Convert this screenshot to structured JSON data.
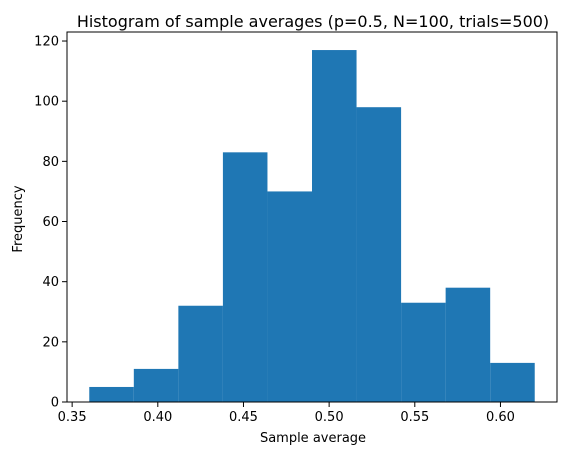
{
  "chart_data": {
    "type": "histogram",
    "title": "Histogram of sample averages (p=0.5, N=100, trials=500)",
    "xlabel": "Sample average",
    "ylabel": "Frequency",
    "bin_edges": [
      0.36,
      0.386,
      0.412,
      0.438,
      0.464,
      0.49,
      0.516,
      0.542,
      0.568,
      0.594,
      0.62
    ],
    "counts": [
      5,
      11,
      32,
      83,
      70,
      117,
      98,
      33,
      38,
      13
    ],
    "xlim": [
      0.347,
      0.633
    ],
    "ylim": [
      0,
      123
    ],
    "xticks": [
      0.35,
      0.4,
      0.45,
      0.5,
      0.55,
      0.6
    ],
    "xtick_labels": [
      "0.35",
      "0.40",
      "0.45",
      "0.50",
      "0.55",
      "0.60"
    ],
    "yticks": [
      0,
      20,
      40,
      60,
      80,
      100,
      120
    ],
    "ytick_labels": [
      "0",
      "20",
      "40",
      "60",
      "80",
      "100",
      "120"
    ],
    "bar_color": "#1f77b4",
    "grid": false
  }
}
